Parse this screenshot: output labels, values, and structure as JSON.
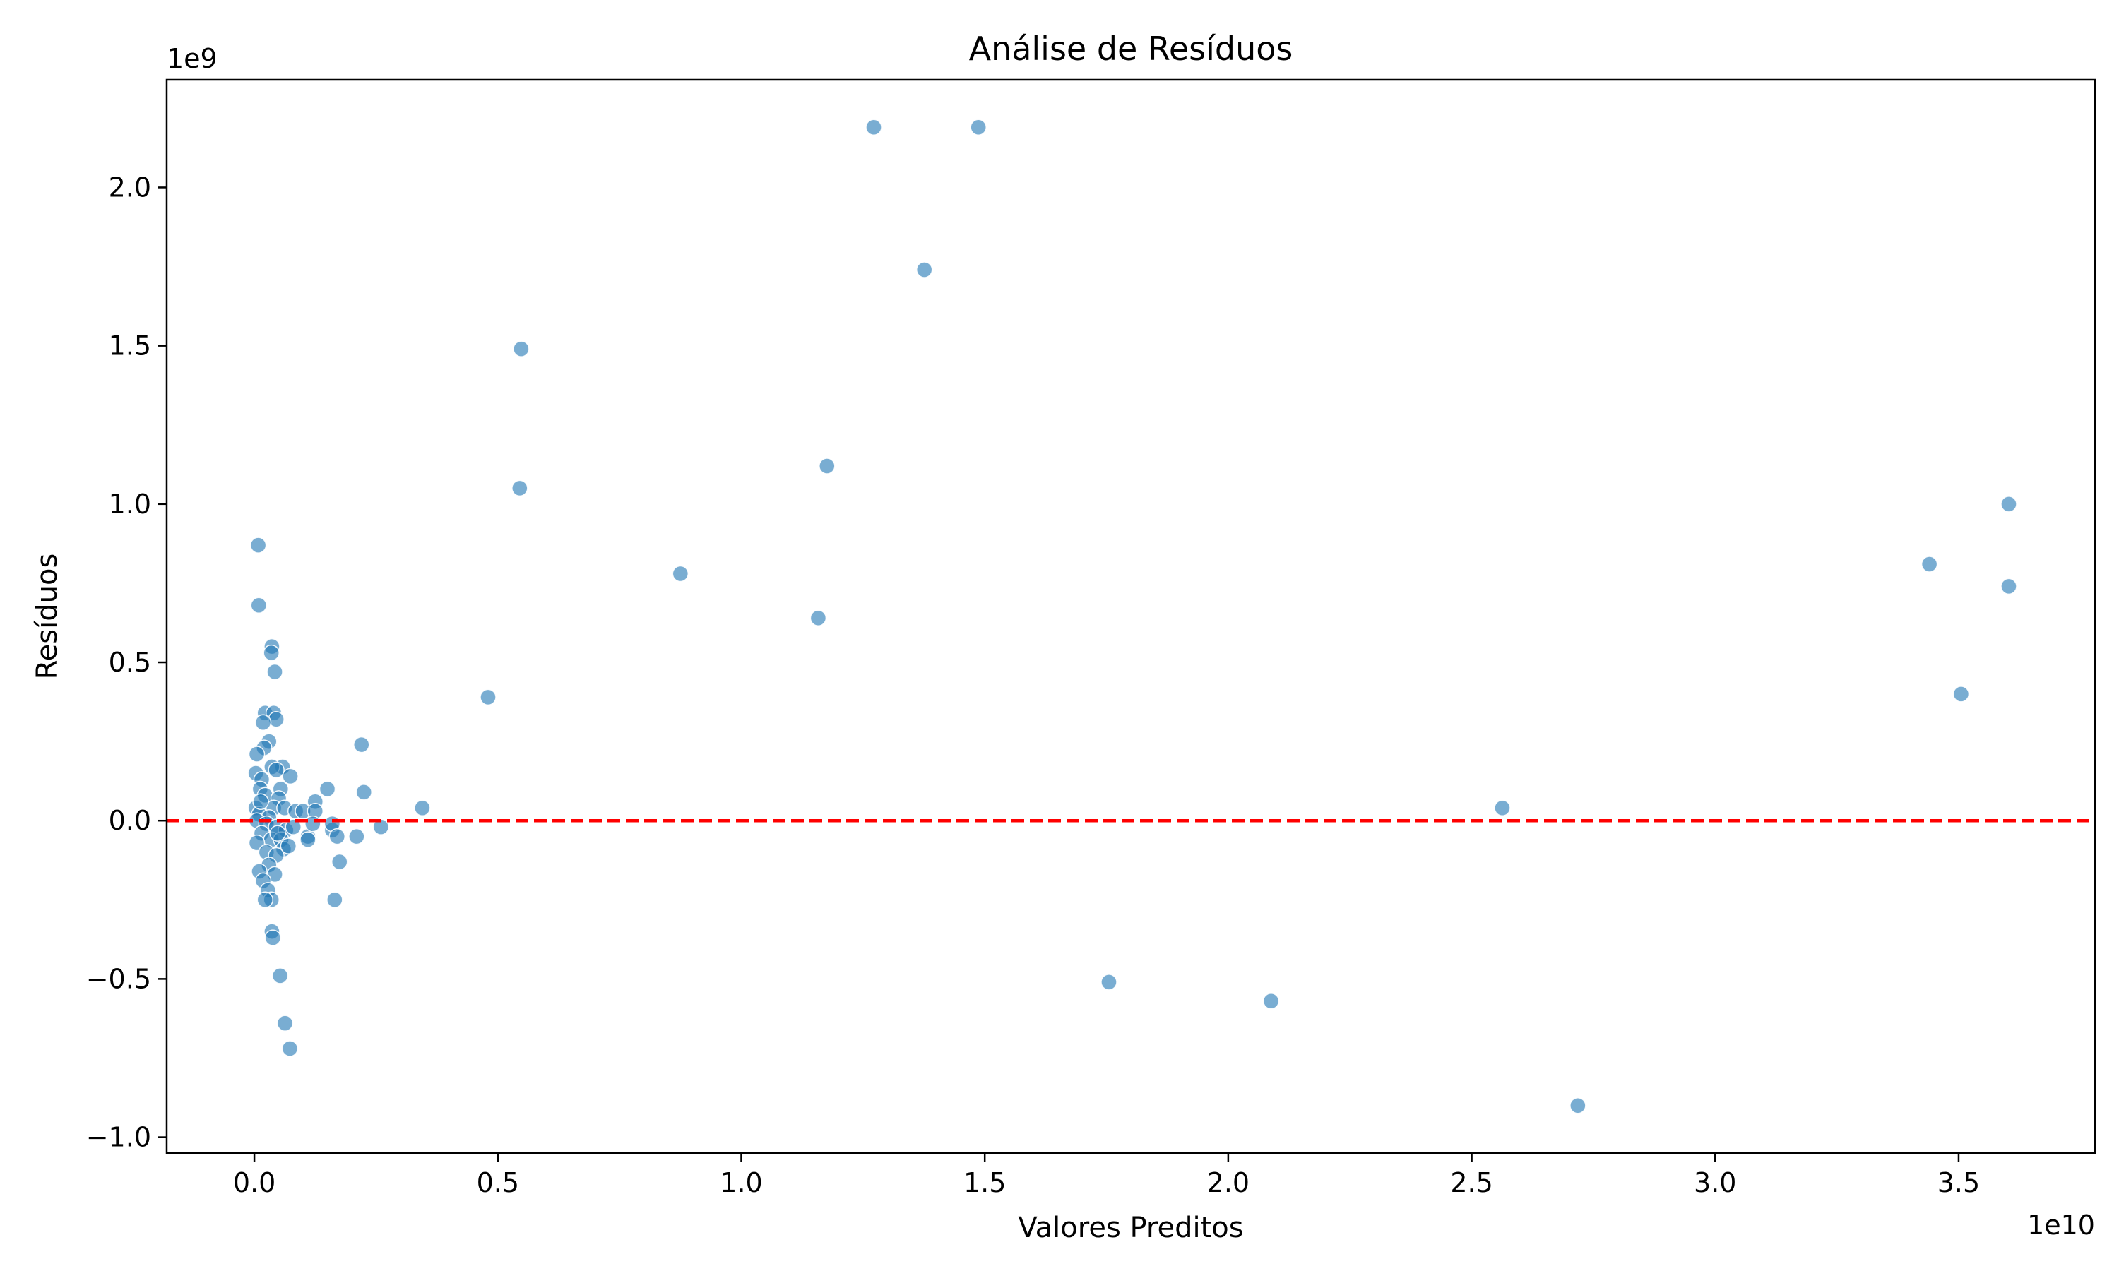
{
  "chart_data": {
    "type": "scatter",
    "title": "Análise de Resíduos",
    "xlabel": "Valores Preditos",
    "ylabel": "Resíduos",
    "x_offset_label": "1e10",
    "y_offset_label": "1e9",
    "x_scale_factor": 10000000000,
    "y_scale_factor": 1000000000,
    "xlim": [
      -0.18,
      3.78
    ],
    "ylim": [
      -1.05,
      2.34
    ],
    "x_ticks": [
      0.0,
      0.5,
      1.0,
      1.5,
      2.0,
      2.5,
      3.0,
      3.5
    ],
    "x_tick_labels": [
      "0.0",
      "0.5",
      "1.0",
      "1.5",
      "2.0",
      "2.5",
      "3.0",
      "3.5"
    ],
    "y_ticks": [
      -1.0,
      -0.5,
      0.0,
      0.5,
      1.0,
      1.5,
      2.0
    ],
    "y_tick_labels": [
      "−1.0",
      "−0.5",
      "0.0",
      "0.5",
      "1.0",
      "1.5",
      "2.0"
    ],
    "grid": false,
    "reference_line": {
      "y": 0,
      "style": "dashed",
      "color": "#ff0000"
    },
    "marker_color": "#1f77b4",
    "marker_alpha": 0.6,
    "points": [
      [
        0.008,
        0.87
      ],
      [
        0.009,
        0.68
      ],
      [
        0.036,
        0.55
      ],
      [
        0.035,
        0.53
      ],
      [
        0.042,
        0.47
      ],
      [
        0.053,
        -0.49
      ],
      [
        0.063,
        -0.64
      ],
      [
        0.073,
        -0.72
      ],
      [
        0.036,
        -0.35
      ],
      [
        0.038,
        -0.37
      ],
      [
        0.022,
        0.34
      ],
      [
        0.04,
        0.34
      ],
      [
        0.045,
        0.32
      ],
      [
        0.018,
        0.31
      ],
      [
        0.03,
        0.25
      ],
      [
        0.02,
        0.23
      ],
      [
        0.005,
        0.21
      ],
      [
        0.058,
        0.17
      ],
      [
        0.036,
        0.17
      ],
      [
        0.045,
        0.16
      ],
      [
        0.003,
        0.15
      ],
      [
        0.015,
        0.13
      ],
      [
        0.074,
        0.14
      ],
      [
        0.054,
        0.1
      ],
      [
        0.012,
        0.1
      ],
      [
        0.022,
        0.08
      ],
      [
        0.05,
        0.07
      ],
      [
        0.003,
        0.04
      ],
      [
        0.04,
        0.04
      ],
      [
        0.062,
        0.04
      ],
      [
        0.085,
        0.03
      ],
      [
        0.01,
        0.02
      ],
      [
        0.03,
        0.01
      ],
      [
        0.005,
        0.0
      ],
      [
        0.025,
        -0.01
      ],
      [
        0.045,
        -0.02
      ],
      [
        0.065,
        -0.03
      ],
      [
        0.08,
        -0.02
      ],
      [
        0.015,
        -0.04
      ],
      [
        0.035,
        -0.06
      ],
      [
        0.055,
        -0.06
      ],
      [
        0.005,
        -0.07
      ],
      [
        0.06,
        -0.09
      ],
      [
        0.025,
        -0.1
      ],
      [
        0.045,
        -0.11
      ],
      [
        0.03,
        -0.14
      ],
      [
        0.01,
        -0.16
      ],
      [
        0.042,
        -0.17
      ],
      [
        0.018,
        -0.19
      ],
      [
        0.028,
        -0.22
      ],
      [
        0.035,
        -0.25
      ],
      [
        0.022,
        -0.25
      ],
      [
        0.013,
        0.06
      ],
      [
        0.048,
        -0.04
      ],
      [
        0.07,
        -0.08
      ],
      [
        0.1,
        0.03
      ],
      [
        0.11,
        -0.05
      ],
      [
        0.125,
        0.06
      ],
      [
        0.125,
        0.03
      ],
      [
        0.12,
        -0.01
      ],
      [
        0.11,
        -0.06
      ],
      [
        0.15,
        0.1
      ],
      [
        0.16,
        -0.03
      ],
      [
        0.16,
        -0.01
      ],
      [
        0.17,
        -0.05
      ],
      [
        0.175,
        -0.13
      ],
      [
        0.165,
        -0.25
      ],
      [
        0.21,
        -0.05
      ],
      [
        0.22,
        0.24
      ],
      [
        0.225,
        0.09
      ],
      [
        0.26,
        -0.02
      ],
      [
        0.345,
        0.04
      ],
      [
        0.48,
        0.39
      ],
      [
        0.545,
        1.05
      ],
      [
        0.548,
        1.49
      ],
      [
        0.875,
        0.78
      ],
      [
        1.158,
        0.64
      ],
      [
        1.176,
        1.12
      ],
      [
        1.272,
        2.19
      ],
      [
        1.376,
        1.74
      ],
      [
        1.487,
        2.19
      ],
      [
        1.755,
        -0.51
      ],
      [
        2.088,
        -0.57
      ],
      [
        2.563,
        0.04
      ],
      [
        2.718,
        -0.9
      ],
      [
        3.44,
        0.81
      ],
      [
        3.505,
        0.4
      ],
      [
        3.603,
        1.0
      ],
      [
        3.603,
        0.74
      ]
    ]
  }
}
